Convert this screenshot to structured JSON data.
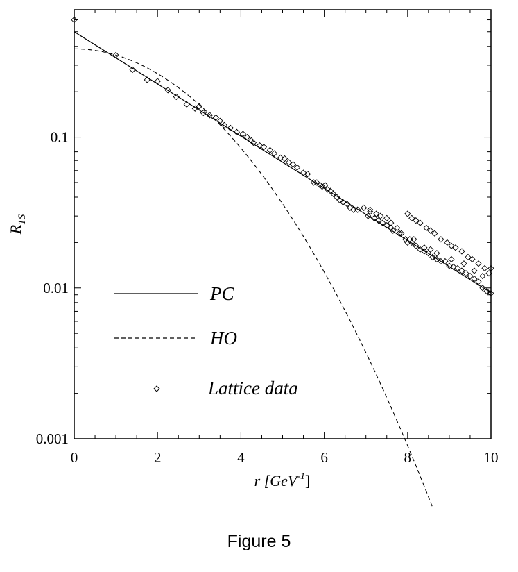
{
  "chart_data": {
    "type": "scatter",
    "xlabel": {
      "main": "r [GeV",
      "sup": "-1",
      "close": "]"
    },
    "ylabel": {
      "main": "R",
      "sub": "1S"
    },
    "xlim": [
      0,
      10
    ],
    "ylim": [
      0.001,
      0.7
    ],
    "yscale": "log",
    "x_ticks": [
      0,
      2,
      4,
      6,
      8,
      10
    ],
    "x_tick_labels": [
      "0",
      "2",
      "4",
      "6",
      "8",
      "10"
    ],
    "y_ticks": [
      0.001,
      0.01,
      0.1
    ],
    "y_tick_labels": [
      "0.001",
      "0.01",
      "0.1"
    ],
    "legend_position": "lower-left",
    "series": [
      {
        "name": "PC",
        "kind": "line",
        "style": "solid",
        "x": [
          0,
          10
        ],
        "y": [
          0.5,
          0.0093
        ]
      },
      {
        "name": "HO",
        "kind": "line",
        "style": "dashed",
        "function": "gaussian",
        "amplitude": 0.385,
        "width": 3.25,
        "x_range": [
          0,
          8.6
        ]
      },
      {
        "name": "Lattice data",
        "kind": "scatter",
        "marker": "diamond",
        "points": [
          [
            0,
            0.6
          ],
          [
            1.0,
            0.35
          ],
          [
            1.4,
            0.28
          ],
          [
            1.75,
            0.24
          ],
          [
            2.0,
            0.235
          ],
          [
            2.25,
            0.205
          ],
          [
            2.45,
            0.185
          ],
          [
            2.7,
            0.165
          ],
          [
            2.9,
            0.155
          ],
          [
            3.0,
            0.16
          ],
          [
            3.1,
            0.145
          ],
          [
            3.25,
            0.14
          ],
          [
            3.4,
            0.135
          ],
          [
            3.5,
            0.128
          ],
          [
            3.6,
            0.12
          ],
          [
            3.75,
            0.115
          ],
          [
            3.9,
            0.108
          ],
          [
            4.05,
            0.105
          ],
          [
            4.15,
            0.1
          ],
          [
            4.25,
            0.095
          ],
          [
            4.3,
            0.092
          ],
          [
            4.45,
            0.088
          ],
          [
            4.55,
            0.086
          ],
          [
            4.7,
            0.082
          ],
          [
            4.8,
            0.078
          ],
          [
            4.95,
            0.073
          ],
          [
            5.05,
            0.072
          ],
          [
            5.15,
            0.068
          ],
          [
            5.25,
            0.066
          ],
          [
            5.35,
            0.063
          ],
          [
            5.5,
            0.058
          ],
          [
            5.6,
            0.057
          ],
          [
            5.75,
            0.05
          ],
          [
            5.82,
            0.05
          ],
          [
            5.9,
            0.048
          ],
          [
            5.95,
            0.047
          ],
          [
            6.02,
            0.048
          ],
          [
            6.08,
            0.045
          ],
          [
            6.15,
            0.044
          ],
          [
            6.22,
            0.042
          ],
          [
            6.3,
            0.04
          ],
          [
            6.38,
            0.038
          ],
          [
            6.45,
            0.037
          ],
          [
            6.55,
            0.036
          ],
          [
            6.62,
            0.034
          ],
          [
            6.7,
            0.033
          ],
          [
            6.8,
            0.033
          ],
          [
            6.95,
            0.034
          ],
          [
            7.05,
            0.03
          ],
          [
            7.1,
            0.032
          ],
          [
            7.2,
            0.029
          ],
          [
            7.3,
            0.028
          ],
          [
            7.4,
            0.027
          ],
          [
            7.5,
            0.026
          ],
          [
            7.6,
            0.025
          ],
          [
            7.65,
            0.024
          ],
          [
            7.75,
            0.025
          ],
          [
            7.85,
            0.023
          ],
          [
            7.95,
            0.021
          ],
          [
            8.05,
            0.021
          ],
          [
            8.1,
            0.02
          ],
          [
            8.15,
            0.021
          ],
          [
            8.2,
            0.019
          ],
          [
            8.3,
            0.018
          ],
          [
            8.4,
            0.0175
          ],
          [
            8.5,
            0.017
          ],
          [
            8.55,
            0.018
          ],
          [
            8.6,
            0.016
          ],
          [
            8.7,
            0.0155
          ],
          [
            8.8,
            0.015
          ],
          [
            8.9,
            0.015
          ],
          [
            9.0,
            0.014
          ],
          [
            9.1,
            0.0138
          ],
          [
            9.2,
            0.0135
          ],
          [
            9.3,
            0.013
          ],
          [
            9.4,
            0.0125
          ],
          [
            9.5,
            0.012
          ],
          [
            9.6,
            0.0115
          ],
          [
            9.7,
            0.011
          ],
          [
            9.8,
            0.01
          ],
          [
            9.9,
            0.0095
          ],
          [
            10.0,
            0.0092
          ],
          [
            8.0,
            0.031
          ],
          [
            8.1,
            0.029
          ],
          [
            8.2,
            0.028
          ],
          [
            8.3,
            0.027
          ],
          [
            8.45,
            0.025
          ],
          [
            8.55,
            0.024
          ],
          [
            8.65,
            0.023
          ],
          [
            8.8,
            0.021
          ],
          [
            8.95,
            0.02
          ],
          [
            9.05,
            0.019
          ],
          [
            9.15,
            0.0185
          ],
          [
            9.3,
            0.0175
          ],
          [
            9.45,
            0.016
          ],
          [
            9.55,
            0.0155
          ],
          [
            9.7,
            0.0145
          ],
          [
            9.85,
            0.0135
          ],
          [
            9.95,
            0.0125
          ],
          [
            10.0,
            0.0135
          ],
          [
            7.1,
            0.033
          ],
          [
            7.25,
            0.031
          ],
          [
            7.35,
            0.03
          ],
          [
            7.5,
            0.029
          ],
          [
            7.6,
            0.027
          ],
          [
            7.8,
            0.023
          ],
          [
            8.0,
            0.02
          ],
          [
            8.4,
            0.0185
          ],
          [
            8.7,
            0.017
          ],
          [
            9.05,
            0.0155
          ],
          [
            9.35,
            0.0145
          ],
          [
            9.6,
            0.013
          ],
          [
            9.8,
            0.012
          ]
        ]
      }
    ]
  },
  "caption": "Figure 5"
}
